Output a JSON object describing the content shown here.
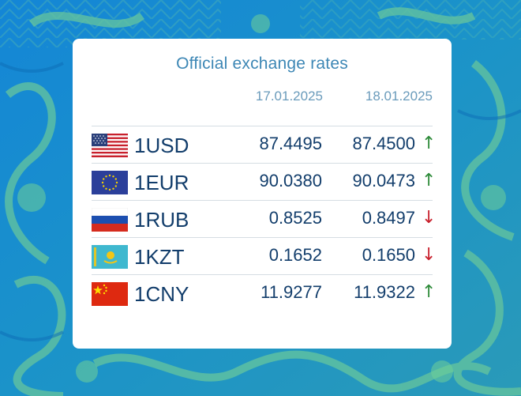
{
  "panel": {
    "title": "Official exchange rates",
    "date_1": "17.01.2025",
    "date_2": "18.01.2025"
  },
  "colors": {
    "title": "#3d87b5",
    "value_text": "#123d6b",
    "up_arrow": "#2e8b3a",
    "down_arrow": "#c8202c"
  },
  "rates": [
    {
      "code": "1USD",
      "flag_icon": "us-flag-icon",
      "rate_1": "87.4495",
      "rate_2": "87.4500",
      "trend": "↑",
      "trend_dir": "up"
    },
    {
      "code": "1EUR",
      "flag_icon": "eu-flag-icon",
      "rate_1": "90.0380",
      "rate_2": "90.0473",
      "trend": "↑",
      "trend_dir": "up"
    },
    {
      "code": "1RUB",
      "flag_icon": "ru-flag-icon",
      "rate_1": "0.8525",
      "rate_2": "0.8497",
      "trend": "↓",
      "trend_dir": "down"
    },
    {
      "code": "1KZT",
      "flag_icon": "kz-flag-icon",
      "rate_1": "0.1652",
      "rate_2": "0.1650",
      "trend": "↓",
      "trend_dir": "down"
    },
    {
      "code": "1CNY",
      "flag_icon": "cn-flag-icon",
      "rate_1": "11.9277",
      "rate_2": "11.9322",
      "trend": "↑",
      "trend_dir": "up"
    }
  ]
}
